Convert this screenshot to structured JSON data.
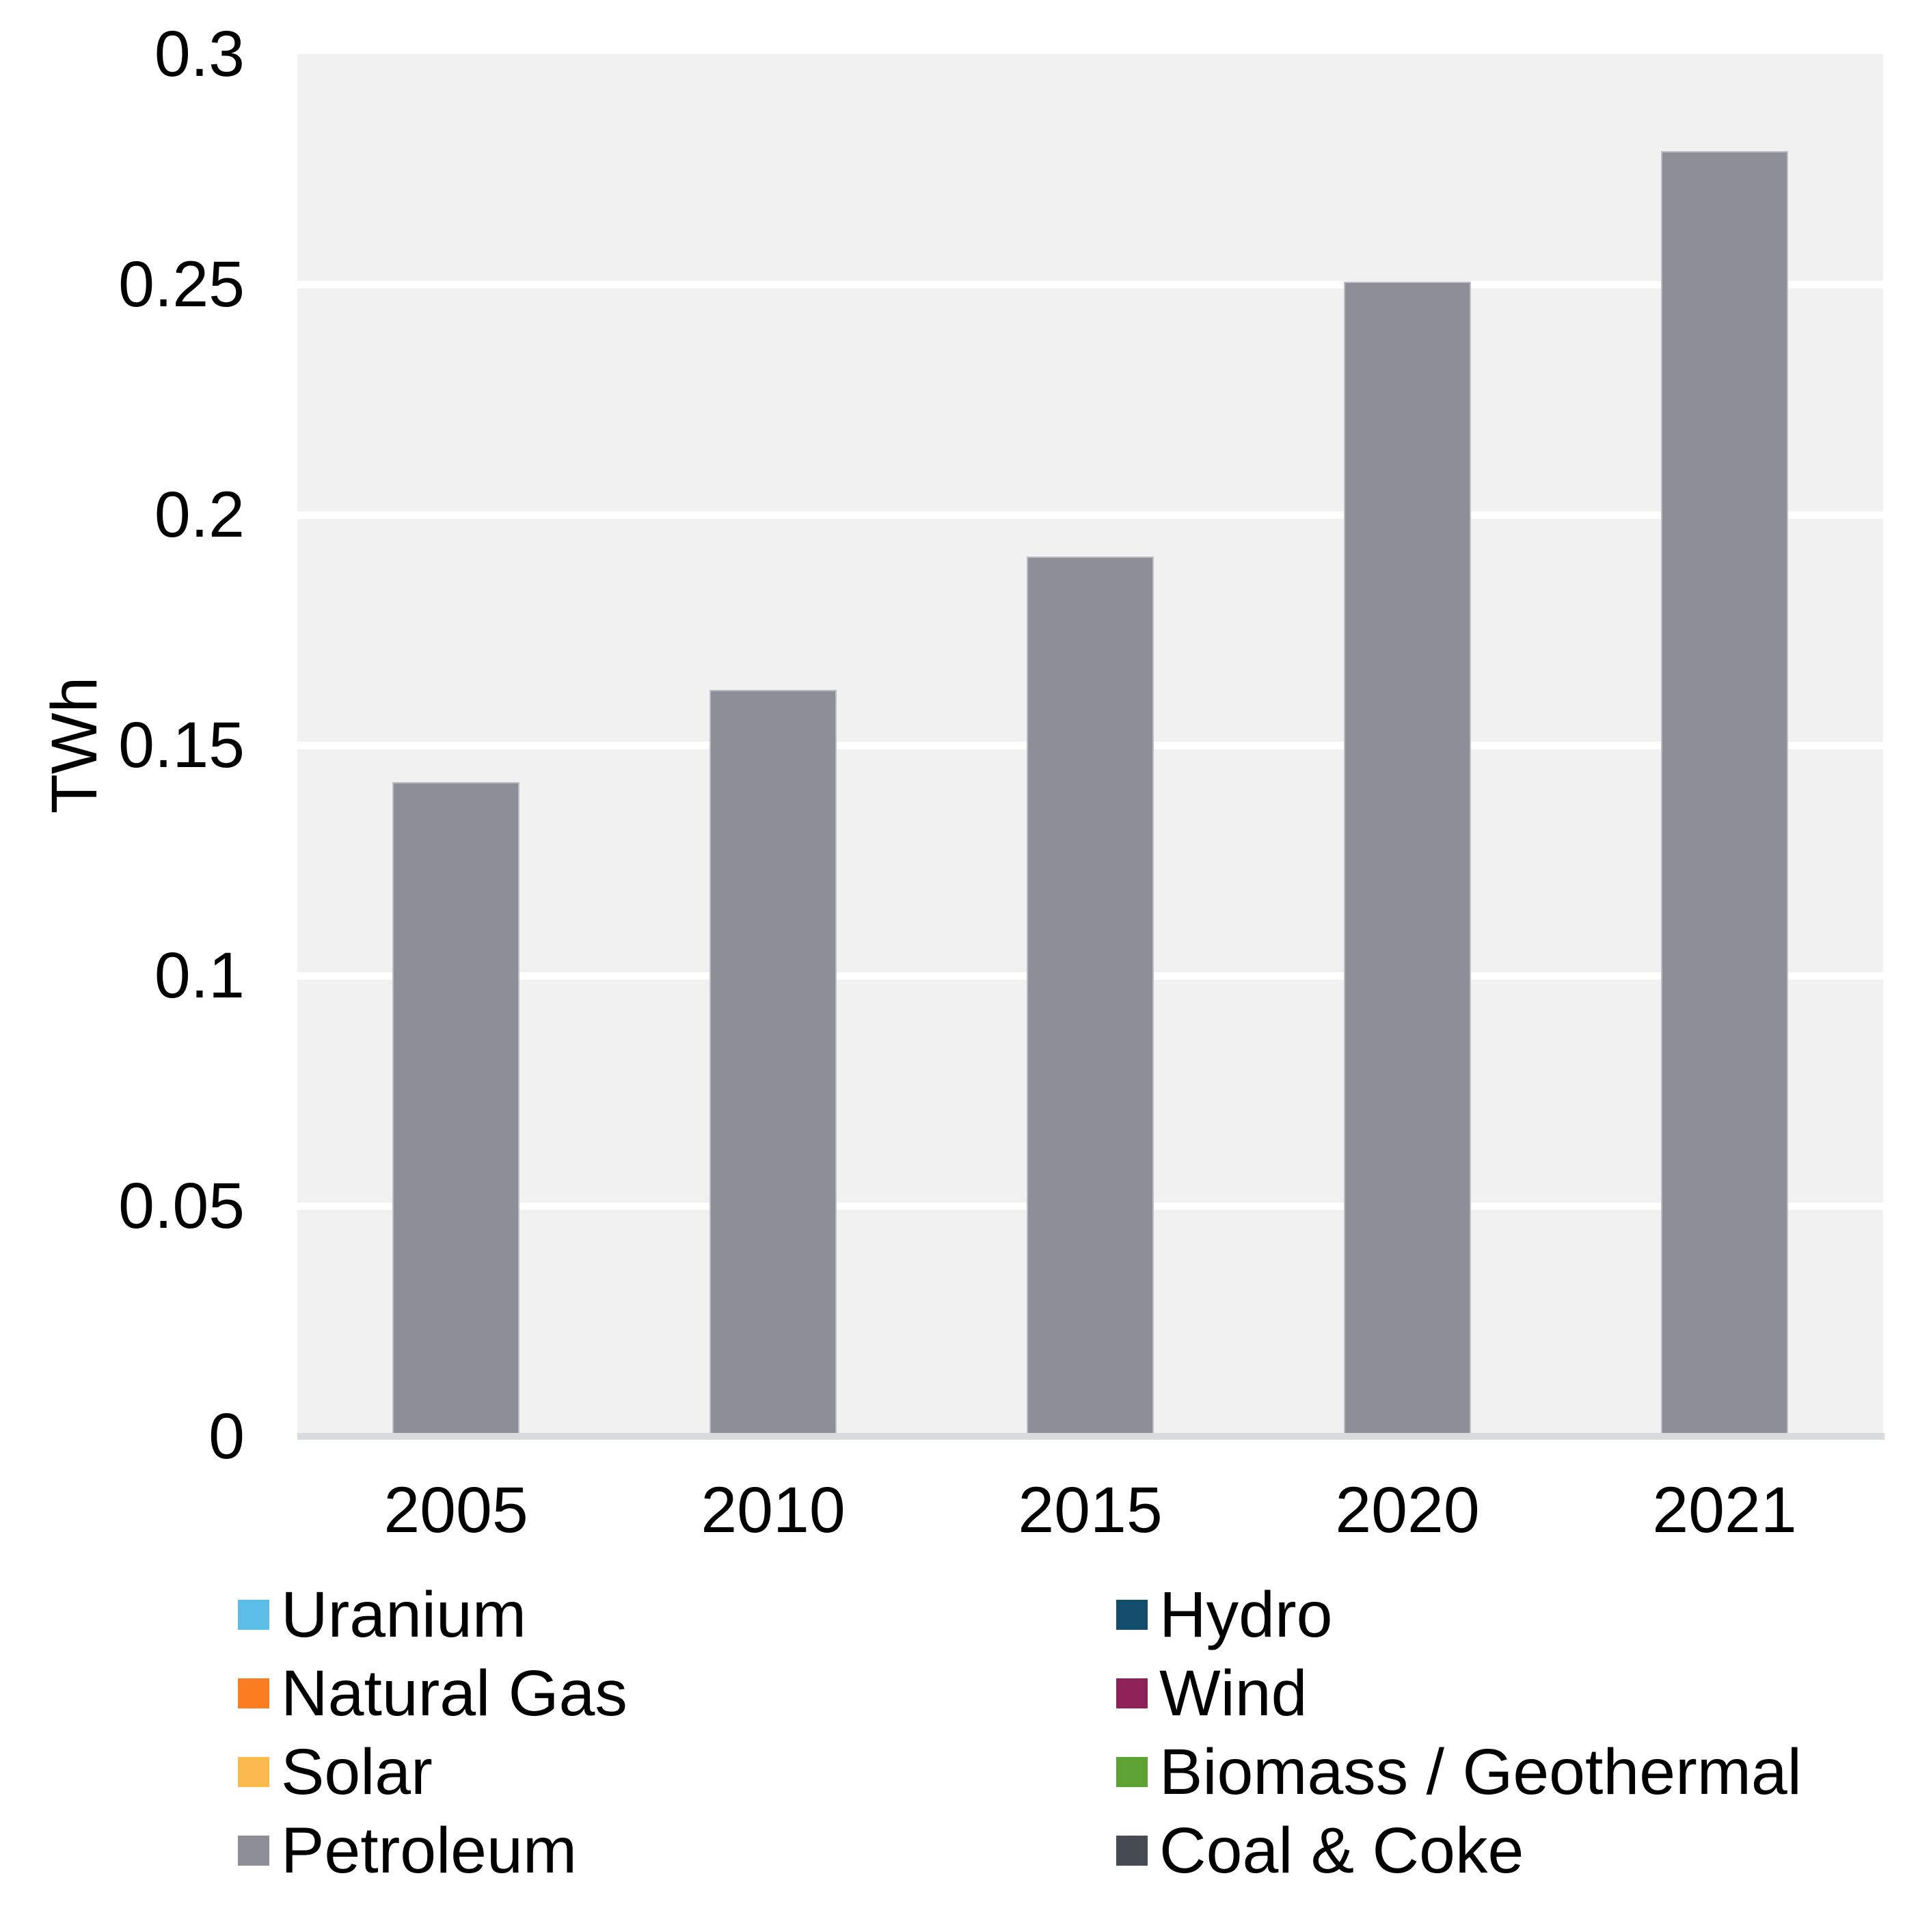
{
  "chart_data": {
    "type": "bar",
    "stacked": true,
    "title": "",
    "xlabel": "",
    "ylabel": "TWh",
    "ylim": [
      0,
      0.3
    ],
    "yticks": [
      0,
      0.05,
      0.1,
      0.15,
      0.2,
      0.25,
      0.3
    ],
    "ytick_labels": [
      "0",
      "0.05",
      "0.1",
      "0.15",
      "0.2",
      "0.25",
      "0.3"
    ],
    "grid": true,
    "plot_background": "#f1f1f2",
    "gridline_color": "#ffffff",
    "baseline_color": "#d9dadc",
    "legend_position": "bottom-two-columns",
    "categories": [
      "2005",
      "2010",
      "2015",
      "2020",
      "2021"
    ],
    "series": [
      {
        "name": "Uranium",
        "color": "#5cbee6",
        "values": [
          0,
          0,
          0,
          0,
          0
        ]
      },
      {
        "name": "Hydro",
        "color": "#124e6c",
        "values": [
          0,
          0,
          0,
          0,
          0
        ]
      },
      {
        "name": "Natural Gas",
        "color": "#fa7d22",
        "values": [
          0,
          0,
          0,
          0,
          0
        ]
      },
      {
        "name": "Wind",
        "color": "#8e2158",
        "values": [
          0,
          0,
          0,
          0,
          0
        ]
      },
      {
        "name": "Solar",
        "color": "#fcb94e",
        "values": [
          0,
          0,
          0,
          0.0004,
          0.0004
        ]
      },
      {
        "name": "Biomass / Geothermal",
        "color": "#5ea233",
        "values": [
          0,
          0,
          0,
          0,
          0
        ]
      },
      {
        "name": "Petroleum",
        "color": "#8e8e99",
        "values": [
          0.142,
          0.162,
          0.191,
          0.2502,
          0.2785
        ]
      },
      {
        "name": "Coal & Coke",
        "color": "#464a52",
        "values": [
          0,
          0,
          0,
          0,
          0
        ]
      }
    ],
    "totals": [
      0.142,
      0.162,
      0.191,
      0.251,
      0.279
    ]
  },
  "legend": {
    "columns": [
      {
        "items": [
          {
            "label": "Uranium",
            "color": "#5cbee6"
          },
          {
            "label": "Natural Gas",
            "color": "#fa7d22"
          },
          {
            "label": "Solar",
            "color": "#fcb94e"
          },
          {
            "label": "Petroleum",
            "color": "#8e8e99"
          }
        ]
      },
      {
        "items": [
          {
            "label": "Hydro",
            "color": "#124e6c"
          },
          {
            "label": "Wind",
            "color": "#8e2158"
          },
          {
            "label": "Biomass / Geothermal",
            "color": "#5ea233"
          },
          {
            "label": "Coal & Coke",
            "color": "#464a52"
          }
        ]
      }
    ]
  }
}
